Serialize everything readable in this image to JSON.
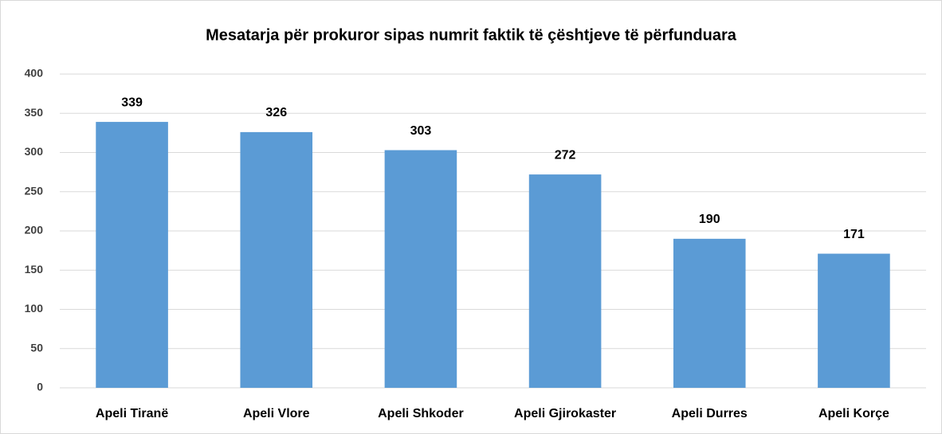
{
  "chart_data": {
    "type": "bar",
    "title": "Mesatarja për prokuror sipas numrit faktik të çështjeve të përfunduara",
    "categories": [
      "Apeli Tiranë",
      "Apeli Vlore",
      "Apeli Shkoder",
      "Apeli Gjirokaster",
      "Apeli Durres",
      "Apeli Korçe"
    ],
    "values": [
      339,
      326,
      303,
      272,
      190,
      171
    ],
    "color": "#5b9bd5",
    "ylim": [
      0,
      400
    ],
    "yticks": [
      0,
      50,
      100,
      150,
      200,
      250,
      300,
      350,
      400
    ],
    "grid": true
  }
}
